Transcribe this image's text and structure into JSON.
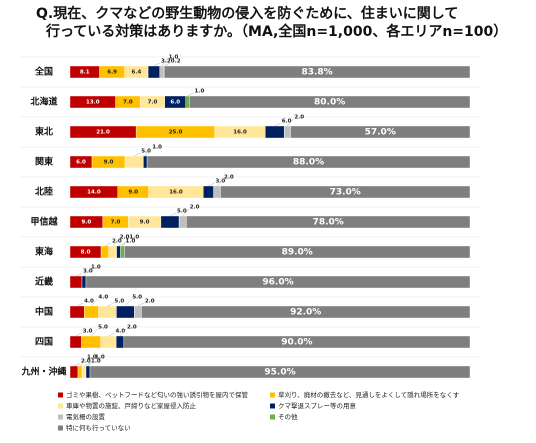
{
  "chart_data": {
    "type": "stacked-bar",
    "title": [
      "Q.現在、クマなどの野生動物の侵入を防ぐために、住まいに関して",
      "行っている対策はありますか。（MA,全国n=1,000、各エリアn=100）"
    ],
    "categories": [
      "全国",
      "北海道",
      "東北",
      "関東",
      "北陸",
      "甲信越",
      "東海",
      "近畿",
      "中国",
      "四国",
      "九州・沖縄"
    ],
    "series": [
      {
        "name": "ゴミや果樹、ペットフードなど匂いの強い誘引物を屋内で保管",
        "color": "#c00000",
        "values": [
          8.1,
          13,
          21,
          6,
          14,
          9,
          8,
          3,
          4,
          3,
          2
        ],
        "value_labels": [
          "8.1",
          "13.0",
          "21.0",
          "6.0",
          "14.0",
          "9.0",
          "8.0",
          "3.0",
          "4.0",
          "3.0",
          "2.0"
        ]
      },
      {
        "name": "草刈り、廃材の撤去など、見通しをよくして隠れ場所をなくす",
        "color": "#ffc000",
        "values": [
          6.9,
          7,
          25,
          9,
          9,
          7,
          2,
          null,
          4,
          5,
          1
        ],
        "value_labels": [
          "6.9",
          "7.0",
          "25.0",
          "9.0",
          "9.0",
          "7.0",
          "2.0",
          null,
          "4.0",
          "5.0",
          "1.0"
        ]
      },
      {
        "name": "車庫や物置の施錠、戸締りなど家屋侵入防止",
        "color": "#ffe699",
        "values": [
          6.4,
          7,
          16,
          5,
          16,
          9,
          2,
          null,
          5,
          4,
          1
        ],
        "value_labels": [
          "6.4",
          "7.0",
          "16.0",
          "5.0",
          "16.0",
          "9.0",
          "2.0",
          null,
          "5.0",
          "4.0",
          "1.0"
        ]
      },
      {
        "name": "クマ撃退スプレー等の用意",
        "color": "#002060",
        "values": [
          3.2,
          6,
          6,
          1,
          3,
          5,
          1,
          1,
          5,
          2,
          1
        ],
        "value_labels": [
          "3.2",
          "6.0",
          "6.0",
          "1.0",
          "3.0",
          "5.0",
          "1.0",
          "1.0",
          "5.0",
          "2.0",
          "1.0"
        ]
      },
      {
        "name": "電気柵の設置",
        "color": "#bfbfbf",
        "values": [
          1,
          null,
          2,
          null,
          2,
          2,
          null,
          null,
          2,
          null,
          null
        ],
        "value_labels": [
          "1.0",
          null,
          "2.0",
          null,
          "2.0",
          "2.0",
          null,
          null,
          "2.0",
          null,
          null
        ]
      },
      {
        "name": "その他",
        "color": "#70ad47",
        "values": [
          0.2,
          1,
          null,
          null,
          null,
          null,
          1,
          null,
          null,
          null,
          null
        ],
        "value_labels": [
          "0.2",
          "1.0",
          null,
          null,
          null,
          null,
          "1.0",
          null,
          null,
          null,
          null
        ]
      },
      {
        "name": "特に何も行っていない",
        "color": "#7f7f7f",
        "values": [
          83.8,
          80,
          57,
          88,
          73,
          78,
          89,
          96,
          92,
          90,
          95
        ],
        "value_labels": [
          "83.8%",
          "80.0%",
          "57.0%",
          "88.0%",
          "73.0%",
          "78.0%",
          "89.0%",
          "96.0%",
          "92.0%",
          "90.0%",
          "95.0%"
        ]
      }
    ]
  }
}
